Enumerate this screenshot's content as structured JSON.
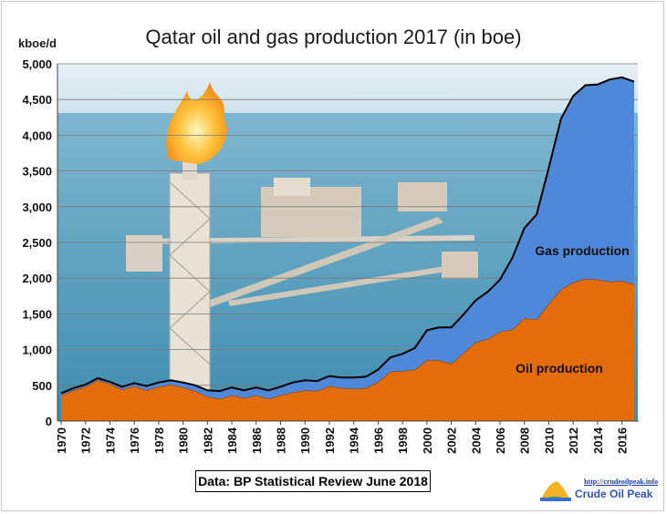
{
  "chart_data": {
    "type": "area",
    "title": "Qatar oil and gas production 2017 (in boe)",
    "ylabel": "kboe/d",
    "xlabel": "",
    "ylim": [
      0,
      5000
    ],
    "y_ticks": [
      "0",
      "500",
      "1,000",
      "1,500",
      "2,000",
      "2,500",
      "3,000",
      "3,500",
      "4,000",
      "4,500",
      "5,000"
    ],
    "x_ticks": [
      "1970",
      "1972",
      "1974",
      "1976",
      "1978",
      "1980",
      "1982",
      "1984",
      "1986",
      "1988",
      "1990",
      "1992",
      "1994",
      "1996",
      "1998",
      "2000",
      "2002",
      "2004",
      "2006",
      "2008",
      "2010",
      "2012",
      "2014",
      "2016"
    ],
    "stacked": true,
    "grid": true,
    "x": [
      1970,
      1971,
      1972,
      1973,
      1974,
      1975,
      1976,
      1977,
      1978,
      1979,
      1980,
      1981,
      1982,
      1983,
      1984,
      1985,
      1986,
      1987,
      1988,
      1989,
      1990,
      1991,
      1992,
      1993,
      1994,
      1995,
      1996,
      1997,
      1998,
      1999,
      2000,
      2001,
      2002,
      2003,
      2004,
      2005,
      2006,
      2007,
      2008,
      2009,
      2010,
      2011,
      2012,
      2013,
      2014,
      2015,
      2016,
      2017
    ],
    "series": [
      {
        "name": "Oil production",
        "color": "#e46c0a",
        "values": [
          360,
          430,
          480,
          570,
          520,
          440,
          490,
          430,
          480,
          510,
          470,
          420,
          340,
          310,
          360,
          320,
          360,
          310,
          360,
          400,
          430,
          420,
          490,
          460,
          450,
          460,
          550,
          690,
          700,
          720,
          850,
          850,
          800,
          950,
          1100,
          1150,
          1250,
          1280,
          1440,
          1420,
          1640,
          1840,
          1940,
          1990,
          1980,
          1950,
          1960,
          1910
        ]
      },
      {
        "name": "Gas production",
        "color": "#4f88d8",
        "values": [
          30,
          30,
          30,
          30,
          30,
          40,
          40,
          60,
          60,
          60,
          70,
          80,
          90,
          110,
          110,
          110,
          110,
          120,
          120,
          140,
          140,
          140,
          140,
          150,
          160,
          160,
          170,
          200,
          240,
          300,
          420,
          460,
          510,
          540,
          590,
          660,
          730,
          1000,
          1260,
          1470,
          1910,
          2390,
          2610,
          2710,
          2730,
          2830,
          2850,
          2840
        ]
      }
    ],
    "annotations": [
      "Gas production",
      "Oil production"
    ],
    "source_note": "Data: BP Statistical Review June 2018"
  },
  "logo": {
    "url": "http://crudeoilpeak.info",
    "name": "Crude Oil Peak"
  },
  "colors": {
    "sky": "#cfe4ef",
    "sea": "#5aa2bf",
    "platform": "#d9cfc2"
  }
}
